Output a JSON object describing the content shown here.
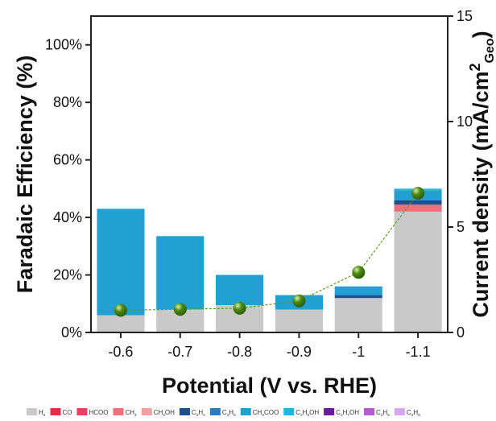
{
  "chart_data": {
    "type": "bar",
    "subtype": "stacked-bar-with-line",
    "xlabel": "Potential (V vs. RHE)",
    "ylabel_left": "Faradaic Efficiency (%)",
    "ylabel_right": {
      "main": "Current density (mA/cm",
      "sup": "2",
      "sub": "Geo",
      "close": ")"
    },
    "categories": [
      "-0.6",
      "-0.7",
      "-0.8",
      "-0.9",
      "-1",
      "-1.1"
    ],
    "ylim_left": [
      0,
      110
    ],
    "ylim_right": [
      0,
      15
    ],
    "yticks_left": [
      "0%",
      "20%",
      "40%",
      "60%",
      "80%",
      "100%"
    ],
    "yticks_left_values": [
      0,
      20,
      40,
      60,
      80,
      100
    ],
    "yticks_right": [
      "0",
      "5",
      "10",
      "15"
    ],
    "yticks_right_values": [
      0,
      5,
      10,
      15
    ],
    "grid": false,
    "legend_position": "bottom",
    "series": [
      {
        "name": "H2",
        "color": "#c9c9c9",
        "values": [
          6,
          8,
          9.5,
          8,
          12,
          42
        ]
      },
      {
        "name": "CO",
        "color": "#e8294a",
        "values": [
          0,
          0,
          0,
          0,
          0,
          0
        ]
      },
      {
        "name": "HCOO",
        "color": "#ec3d63",
        "values": [
          0,
          0,
          0,
          0,
          0,
          0
        ]
      },
      {
        "name": "CH4",
        "color": "#ef6f7a",
        "values": [
          0,
          0,
          0,
          0,
          0,
          2.5
        ]
      },
      {
        "name": "CH3OH",
        "color": "#f4a0a0",
        "values": [
          0,
          0,
          0,
          0,
          0,
          0
        ]
      },
      {
        "name": "C2H4",
        "color": "#1b4f8f",
        "values": [
          0,
          0,
          0,
          0,
          1,
          1.5
        ]
      },
      {
        "name": "C2H6",
        "color": "#2a7bbf",
        "values": [
          0,
          0,
          0,
          0,
          0,
          0
        ]
      },
      {
        "name": "CH3COO",
        "color": "#21a0d2",
        "values": [
          37,
          25.5,
          10.5,
          5,
          3,
          3.5
        ]
      },
      {
        "name": "C2H5OH",
        "color": "#1fb6e0",
        "values": [
          0,
          0,
          0,
          0,
          0,
          0.5
        ]
      },
      {
        "name": "C3H7OH",
        "color": "#6a1b9a",
        "values": [
          0,
          0,
          0,
          0,
          0,
          0
        ]
      },
      {
        "name": "C3H6",
        "color": "#b45cd6",
        "values": [
          0,
          0,
          0,
          0,
          0,
          0
        ]
      },
      {
        "name": "C3H8",
        "color": "#d8a6ee",
        "values": [
          0,
          0,
          0,
          0,
          0,
          0
        ]
      }
    ],
    "line": {
      "name": "Current density",
      "axis": "right",
      "color": "#5a9e1e",
      "marker_color": "#4c8a12",
      "values": [
        1.05,
        1.1,
        1.15,
        1.5,
        2.85,
        6.6
      ]
    },
    "legend": [
      {
        "main": "H",
        "sub": "2",
        "color": "#c9c9c9"
      },
      {
        "main": "CO",
        "sub": "",
        "color": "#e8294a"
      },
      {
        "main": "HCOO",
        "sub": "",
        "color": "#ec3d63"
      },
      {
        "main": "CH",
        "sub": "4",
        "color": "#ef6f7a"
      },
      {
        "main": "CH",
        "sub": "3",
        "rest": "OH",
        "color": "#f4a0a0"
      },
      {
        "main": "C",
        "sub": "2",
        "rest": "H",
        "sub2": "4",
        "color": "#1b4f8f"
      },
      {
        "main": "C",
        "sub": "2",
        "rest": "H",
        "sub2": "6",
        "color": "#2a7bbf"
      },
      {
        "main": "CH",
        "sub": "3",
        "rest": "COO",
        "color": "#21a0d2"
      },
      {
        "main": "C",
        "sub": "2",
        "rest": "H",
        "sub2": "5",
        "rest2": "OH",
        "color": "#1fb6e0"
      },
      {
        "main": "C",
        "sub": "3",
        "rest": "H",
        "sub2": "7",
        "rest2": "OH",
        "color": "#6a1b9a"
      },
      {
        "main": "C",
        "sub": "3",
        "rest": "H",
        "sub2": "6",
        "color": "#b45cd6"
      },
      {
        "main": "C",
        "sub": "3",
        "rest": "H",
        "sub2": "8",
        "color": "#d8a6ee"
      }
    ]
  }
}
